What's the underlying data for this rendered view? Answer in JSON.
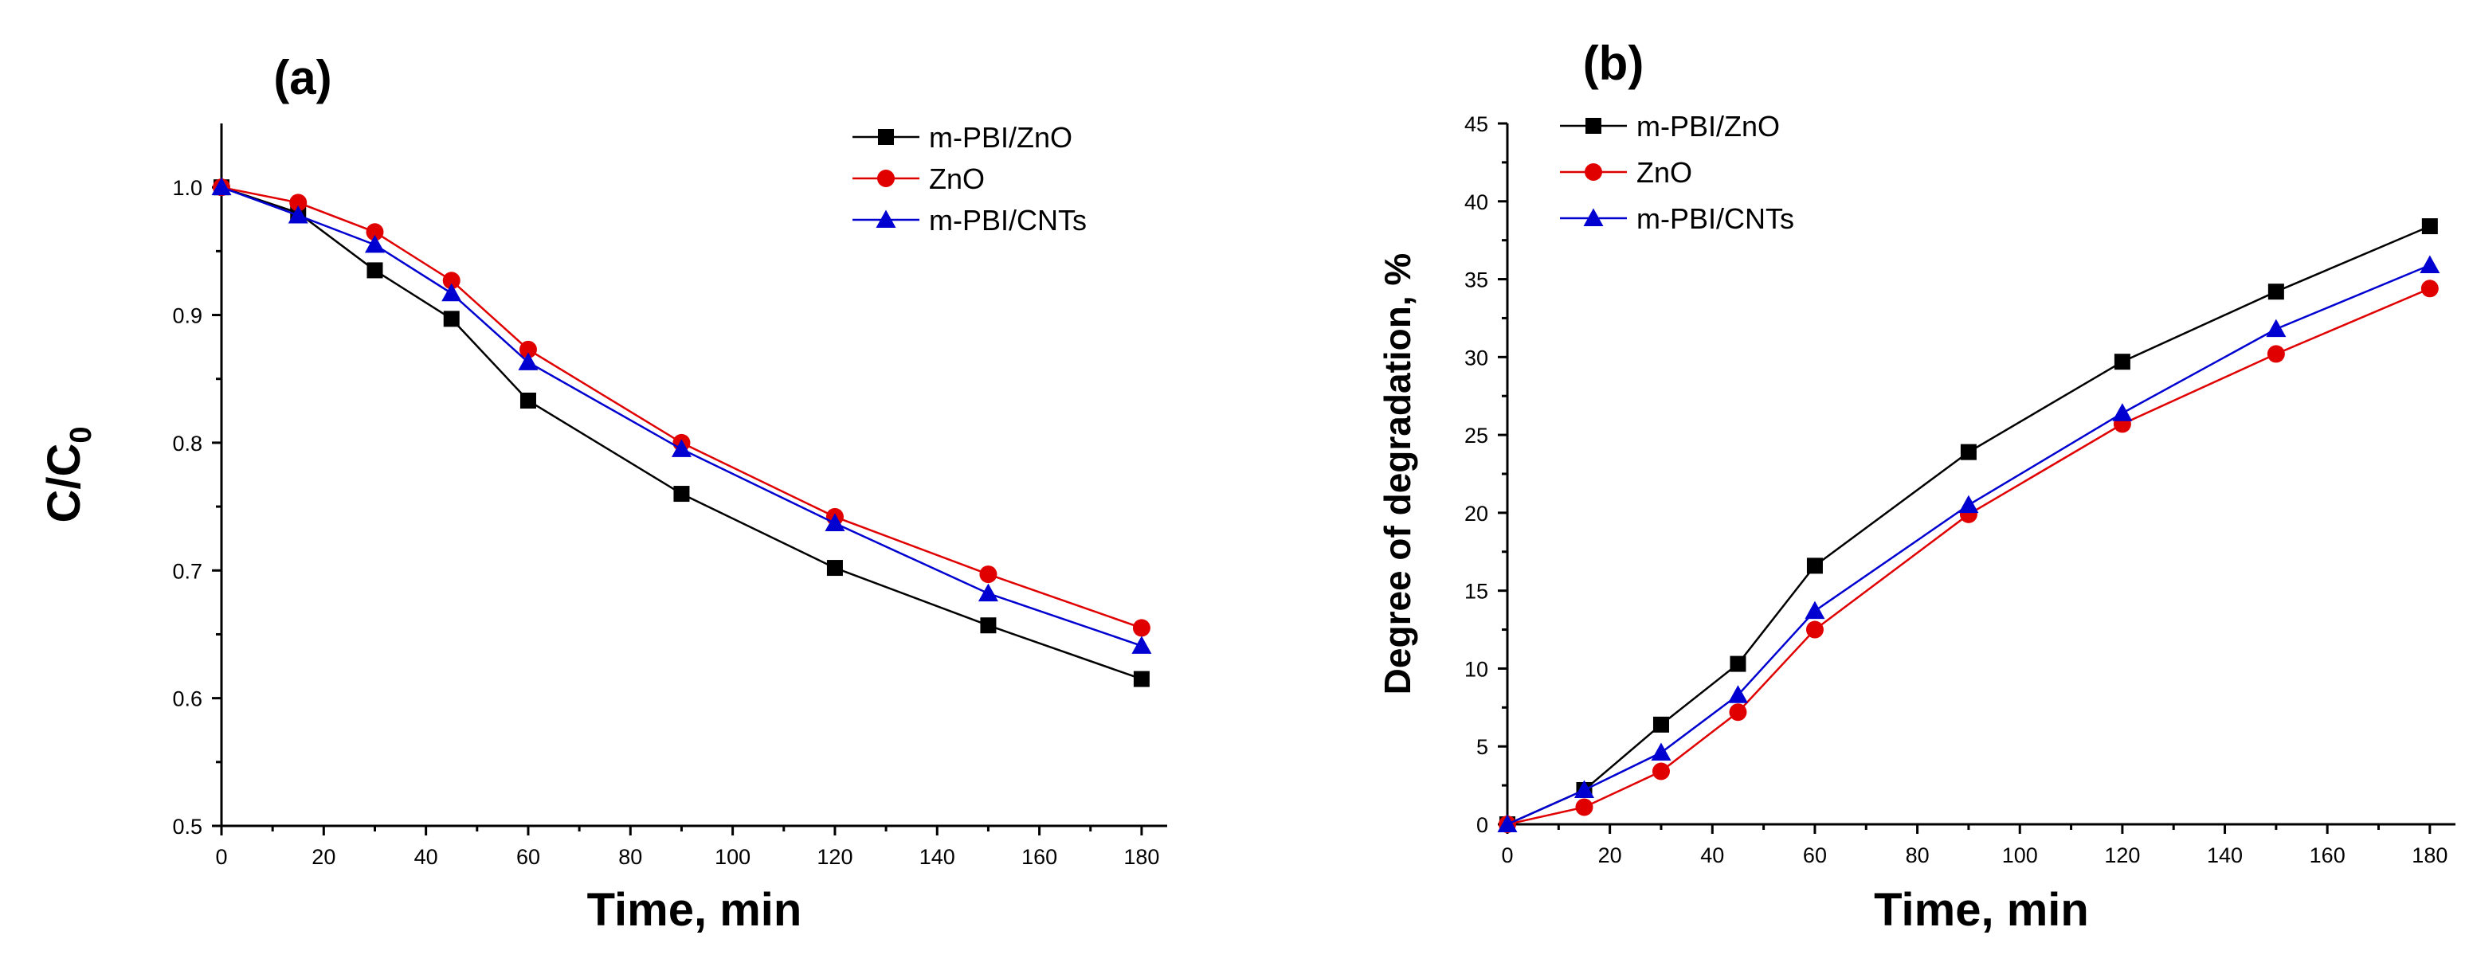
{
  "figure_title": "",
  "chart_data": [
    {
      "panel": "a",
      "type": "line",
      "title": "(a)",
      "xlabel": "Time, min",
      "ylabel_main": "C/C",
      "ylabel_sub": "0",
      "xlim": [
        0,
        185
      ],
      "ylim": [
        0.5,
        1.05
      ],
      "xticks": [
        0,
        20,
        40,
        60,
        80,
        100,
        120,
        140,
        160,
        180
      ],
      "yticks": [
        0.5,
        0.6,
        0.7,
        0.8,
        0.9,
        1.0
      ],
      "ytick_labels": [
        "0.5",
        "0.6",
        "0.7",
        "0.8",
        "0.9",
        "1.0"
      ],
      "legend_position": "top-right",
      "x": [
        0,
        15,
        30,
        45,
        60,
        90,
        120,
        150,
        180
      ],
      "series": [
        {
          "name": "m-PBI/ZnO",
          "color": "#000000",
          "marker": "square",
          "values": [
            1.0,
            0.98,
            0.935,
            0.897,
            0.833,
            0.76,
            0.702,
            0.657,
            0.615
          ]
        },
        {
          "name": "ZnO",
          "color": "#e00000",
          "marker": "circle",
          "values": [
            1.0,
            0.988,
            0.965,
            0.927,
            0.873,
            0.8,
            0.742,
            0.697,
            0.655
          ]
        },
        {
          "name": "m-PBI/CNTs",
          "color": "#0000d0",
          "marker": "triangle",
          "values": [
            1.0,
            0.978,
            0.955,
            0.917,
            0.863,
            0.795,
            0.737,
            0.682,
            0.641
          ]
        }
      ]
    },
    {
      "panel": "b",
      "type": "line",
      "title": "(b)",
      "xlabel": "Time, min",
      "ylabel_main": "Degree of degradation, %",
      "ylabel_sub": "",
      "xlim": [
        0,
        185
      ],
      "ylim": [
        0,
        45
      ],
      "xticks": [
        0,
        20,
        40,
        60,
        80,
        100,
        120,
        140,
        160,
        180
      ],
      "yticks": [
        0,
        5,
        10,
        15,
        20,
        25,
        30,
        35,
        40,
        45
      ],
      "ytick_labels": [
        "0",
        "5",
        "10",
        "15",
        "20",
        "25",
        "30",
        "35",
        "40",
        "45"
      ],
      "legend_position": "top-left",
      "x": [
        0,
        15,
        30,
        45,
        60,
        90,
        120,
        150,
        180
      ],
      "series": [
        {
          "name": "m-PBI/ZnO",
          "color": "#000000",
          "marker": "square",
          "values": [
            0,
            2.2,
            6.4,
            10.3,
            16.6,
            23.9,
            29.7,
            34.2,
            38.4
          ]
        },
        {
          "name": "ZnO",
          "color": "#e00000",
          "marker": "circle",
          "values": [
            0,
            1.1,
            3.4,
            7.2,
            12.5,
            19.9,
            25.7,
            30.2,
            34.4
          ]
        },
        {
          "name": "m-PBI/CNTs",
          "color": "#0000d0",
          "marker": "triangle",
          "values": [
            0,
            2.2,
            4.6,
            8.3,
            13.7,
            20.5,
            26.4,
            31.8,
            35.9
          ]
        }
      ]
    }
  ]
}
